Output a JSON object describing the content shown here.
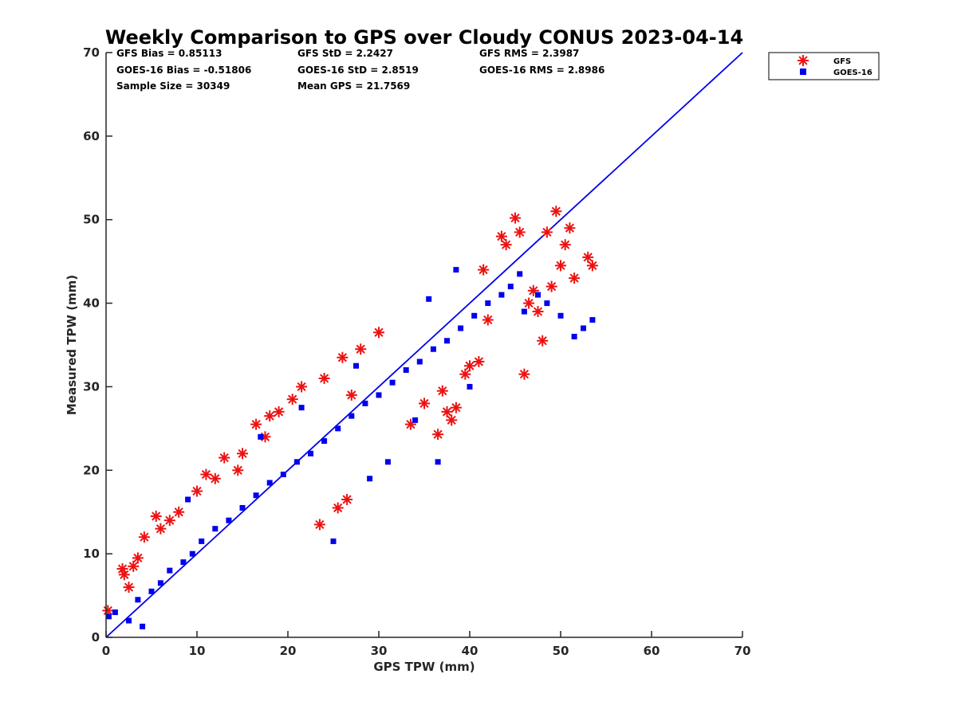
{
  "chart_data": {
    "type": "scatter",
    "title": "Weekly Comparison to GPS over Cloudy CONUS 2023-04-14",
    "xlabel": "GPS TPW (mm)",
    "ylabel": "Measured TPW (mm)",
    "xlim": [
      0,
      70
    ],
    "ylim": [
      0,
      70
    ],
    "xticks": [
      0,
      10,
      20,
      30,
      40,
      50,
      60,
      70
    ],
    "yticks": [
      0,
      10,
      20,
      30,
      40,
      50,
      60,
      70
    ],
    "grid": false,
    "legend_position": "outside-top-right",
    "stats": [
      "GFS Bias = 0.85113",
      "GFS StD = 2.2427",
      "GFS RMS = 2.3987",
      "GOES-16 Bias = -0.51806",
      "GOES-16 StD = 2.8519",
      "GOES-16 RMS = 2.8986",
      "Sample Size = 30349",
      "Mean GPS = 21.7569"
    ],
    "reference_line": {
      "x": [
        0,
        70
      ],
      "y": [
        0,
        70
      ],
      "color": "#0000ee"
    },
    "series": [
      {
        "name": "GFS",
        "marker": "asterisk",
        "color": "#ee1111",
        "x": [
          0.2,
          1.8,
          2.0,
          2.5,
          3.0,
          3.5,
          4.2,
          5.5,
          6.0,
          7.0,
          8.0,
          10.0,
          11.0,
          12.0,
          13.0,
          14.5,
          15.0,
          16.5,
          17.5,
          18.0,
          19.0,
          20.5,
          21.5,
          23.5,
          24.0,
          25.5,
          26.0,
          26.5,
          27.0,
          28.0,
          30.0,
          33.5,
          35.0,
          36.5,
          37.0,
          37.5,
          38.0,
          38.5,
          39.5,
          40.0,
          41.0,
          41.5,
          42.0,
          43.5,
          44.0,
          45.0,
          45.5,
          46.0,
          46.5,
          47.0,
          47.5,
          48.0,
          48.5,
          49.0,
          49.5,
          50.0,
          50.5,
          51.0,
          51.5,
          53.0,
          53.5
        ],
        "y": [
          3.2,
          8.2,
          7.5,
          6.0,
          8.5,
          9.5,
          12.0,
          14.5,
          13.0,
          14.0,
          15.0,
          17.5,
          19.5,
          19.0,
          21.5,
          20.0,
          22.0,
          25.5,
          24.0,
          26.5,
          27.0,
          28.5,
          30.0,
          13.5,
          31.0,
          15.5,
          33.5,
          16.5,
          29.0,
          34.5,
          36.5,
          25.5,
          28.0,
          24.3,
          29.5,
          27.0,
          26.0,
          27.5,
          31.5,
          32.5,
          33.0,
          44.0,
          38.0,
          48.0,
          47.0,
          50.2,
          48.5,
          31.5,
          40.0,
          41.5,
          39.0,
          35.5,
          48.5,
          42.0,
          51.0,
          44.5,
          47.0,
          49.0,
          43.0,
          45.5,
          44.5
        ]
      },
      {
        "name": "GOES-16",
        "marker": "square",
        "color": "#0000ee",
        "x": [
          0.3,
          1.0,
          2.5,
          3.5,
          4.0,
          5.0,
          6.0,
          7.0,
          8.5,
          9.5,
          10.5,
          12.0,
          13.5,
          15.0,
          16.5,
          18.0,
          19.5,
          21.0,
          22.5,
          24.0,
          25.5,
          27.0,
          28.5,
          30.0,
          31.5,
          33.0,
          34.5,
          36.0,
          37.5,
          39.0,
          40.5,
          42.0,
          43.5,
          44.5,
          45.5,
          46.0,
          47.5,
          48.5,
          50.0,
          51.5,
          52.5,
          53.5,
          25.0,
          29.0,
          31.0,
          34.0,
          36.5,
          40.0,
          9.0,
          17.0,
          21.5,
          27.5,
          35.5,
          38.5
        ],
        "y": [
          2.5,
          3.0,
          2.0,
          4.5,
          1.3,
          5.5,
          6.5,
          8.0,
          9.0,
          10.0,
          11.5,
          13.0,
          14.0,
          15.5,
          17.0,
          18.5,
          19.5,
          21.0,
          22.0,
          23.5,
          25.0,
          26.5,
          28.0,
          29.0,
          30.5,
          32.0,
          33.0,
          34.5,
          35.5,
          37.0,
          38.5,
          40.0,
          41.0,
          42.0,
          43.5,
          39.0,
          41.0,
          40.0,
          38.5,
          36.0,
          37.0,
          38.0,
          11.5,
          19.0,
          21.0,
          26.0,
          21.0,
          30.0,
          16.5,
          24.0,
          27.5,
          32.5,
          40.5,
          44.0
        ]
      }
    ]
  }
}
